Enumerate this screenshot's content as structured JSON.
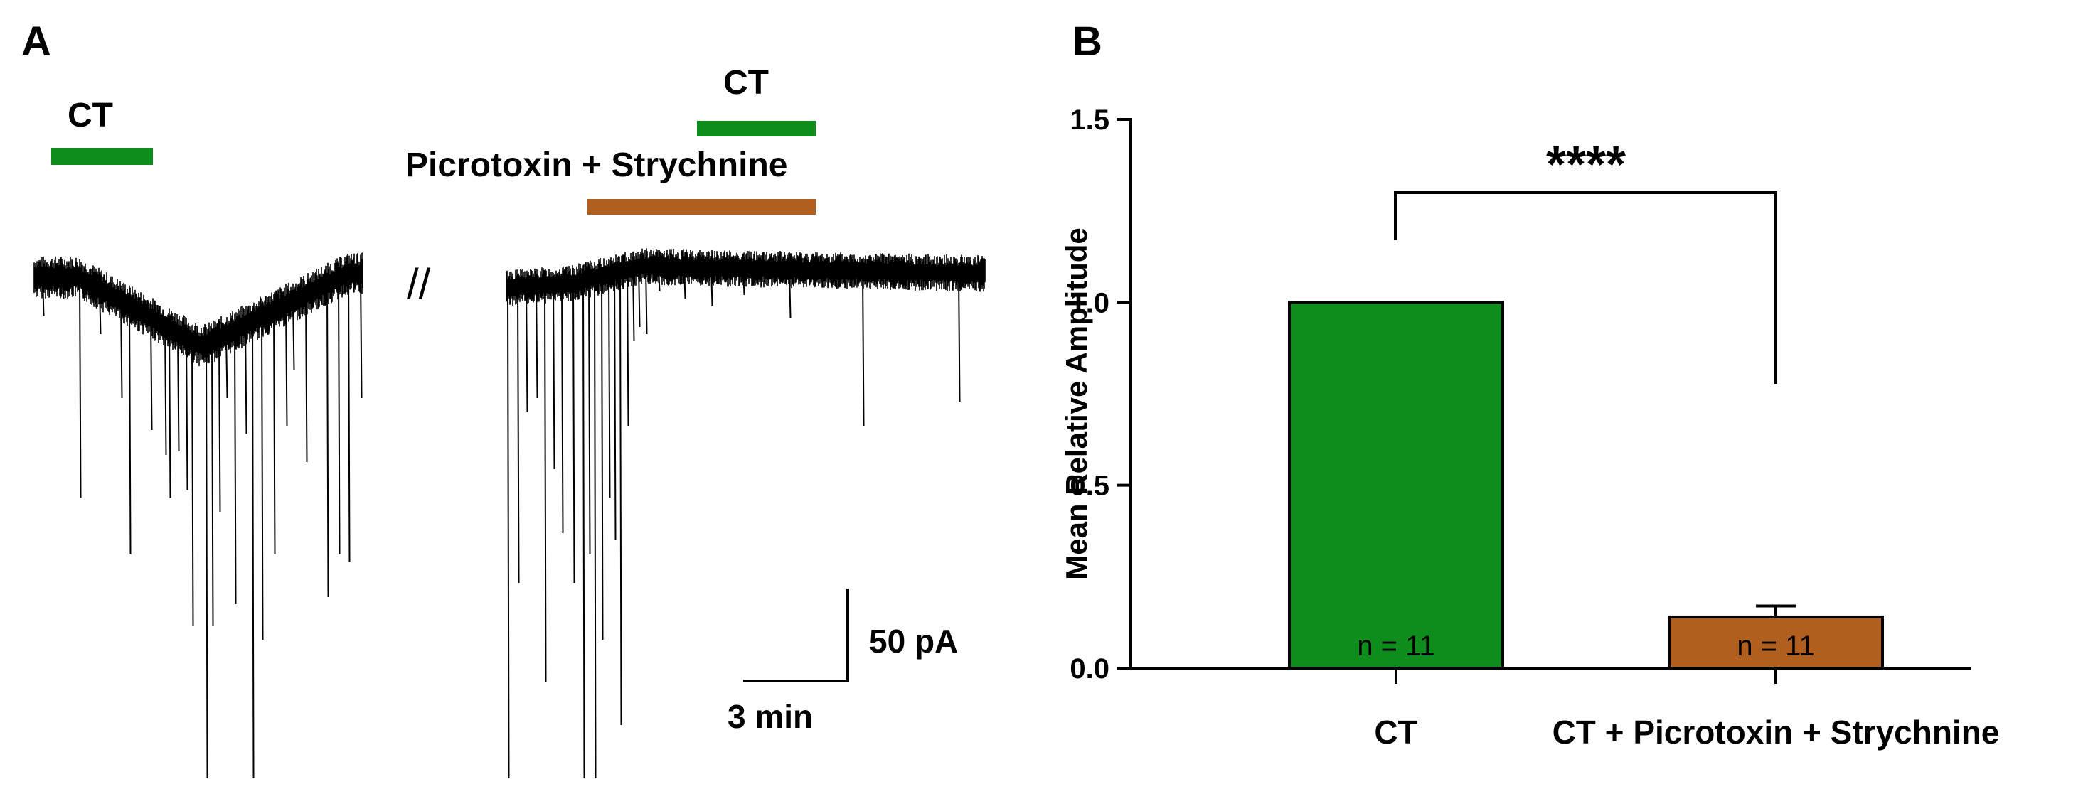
{
  "panel_a": {
    "letter": "A",
    "trace_1": {
      "drug_label": "CT",
      "drug_color": "#0e8c1c"
    },
    "trace_2": {
      "drug_label_top": "CT",
      "drug_color_top": "#0e8c1c",
      "drug_label_bottom": "Picrotoxin + Strychnine",
      "drug_color_bottom": "#b05f1e"
    },
    "break_mark": "//",
    "scale_bar": {
      "current": "50 pA",
      "time": "3 min"
    }
  },
  "panel_b": {
    "letter": "B",
    "significance": "****"
  },
  "chart_data": {
    "type": "bar",
    "categories": [
      "CT",
      "CT + Picrotoxin + Strychnine"
    ],
    "values": [
      1.0,
      0.14
    ],
    "errors": [
      0,
      0.03
    ],
    "n_labels": [
      "n = 11",
      "n = 11"
    ],
    "colors": [
      "#0e8c1c",
      "#b05f1e"
    ],
    "ylabel": "Mean Relative Amplitude",
    "xlabel": "",
    "ylim": [
      0,
      1.5
    ],
    "yticks": [
      "0.0",
      "0.5",
      "1.0",
      "1.5"
    ],
    "ytick_values": [
      0,
      0.5,
      1.0,
      1.5
    ],
    "grid": false
  }
}
